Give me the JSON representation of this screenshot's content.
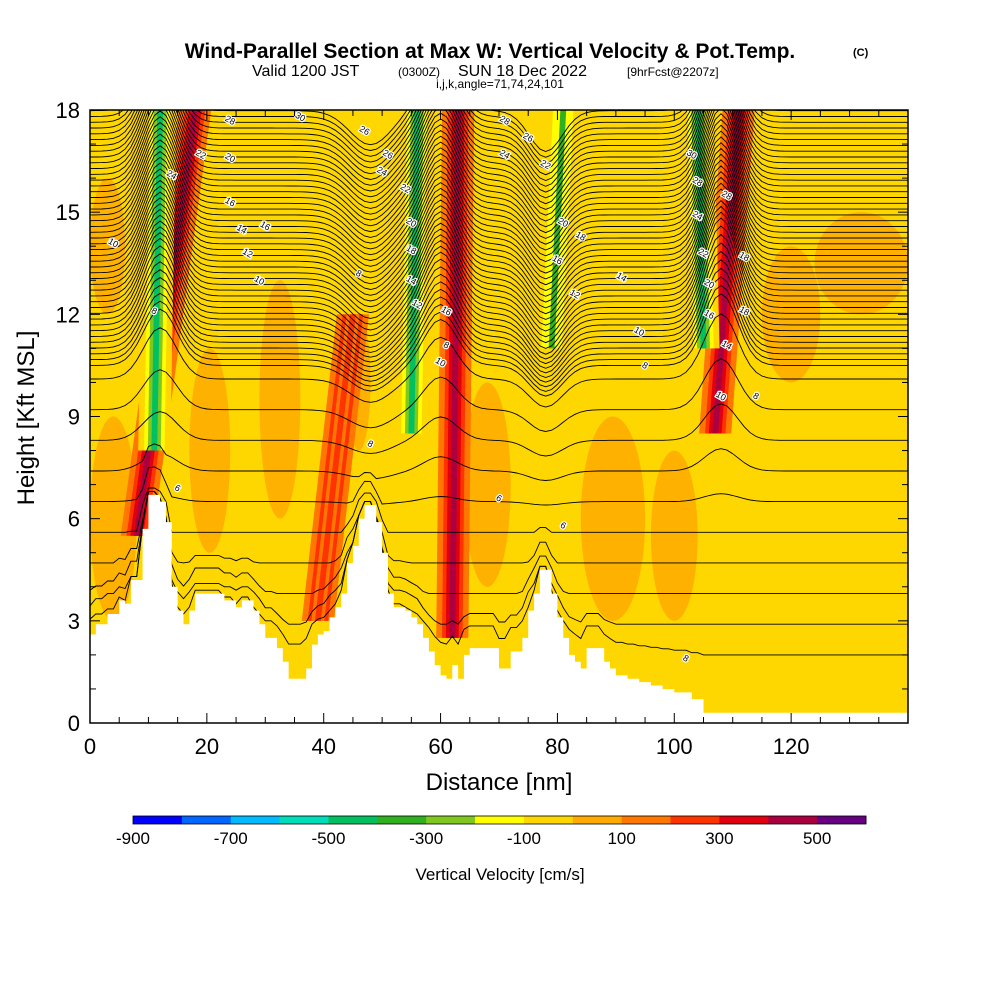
{
  "chart_data": {
    "type": "heatmap",
    "title": "Wind-Parallel Section at Max W: Vertical Velocity & Pot.Temp.",
    "title_mark": "(C)",
    "subtitle": {
      "valid": "Valid 1200 JST",
      "utc": "(0300Z)",
      "date": "SUN 18 Dec 2022",
      "forecast": "[9hrFcst@2207z]"
    },
    "section_info": "i,j,k,angle=71,74,24,101",
    "xlabel": "Distance [nm]",
    "ylabel": "Height [Kft MSL]",
    "xlim": [
      0,
      140
    ],
    "ylim": [
      0,
      18
    ],
    "x_ticks": [
      "0",
      "20",
      "40",
      "60",
      "80",
      "100",
      "120"
    ],
    "y_ticks": [
      "0",
      "3",
      "6",
      "9",
      "12",
      "15",
      "18"
    ],
    "colorbar": {
      "label": "Vertical Velocity [cm/s]",
      "ticks": [
        "-900",
        "-700",
        "-500",
        "-300",
        "-100",
        "100",
        "300",
        "500"
      ],
      "colors": [
        "#0000ff",
        "#0066ff",
        "#00bbff",
        "#00ddbb",
        "#00c060",
        "#30b020",
        "#80c820",
        "#ffff00",
        "#ffd700",
        "#ffaa00",
        "#ff7700",
        "#ff3300",
        "#e00010",
        "#aa0040",
        "#660080"
      ]
    },
    "terrain_profile": [
      [
        0,
        2.6
      ],
      [
        1,
        2.9
      ],
      [
        2,
        2.9
      ],
      [
        3,
        3.2
      ],
      [
        4,
        3.2
      ],
      [
        5,
        3.6
      ],
      [
        6,
        3.5
      ],
      [
        7,
        4.2
      ],
      [
        8,
        4.2
      ],
      [
        9,
        5.7
      ],
      [
        10,
        6.7
      ],
      [
        11,
        6.7
      ],
      [
        12,
        6.5
      ],
      [
        13,
        5.9
      ],
      [
        14,
        4.0
      ],
      [
        15,
        3.3
      ],
      [
        16,
        2.9
      ],
      [
        17,
        3.3
      ],
      [
        18,
        3.8
      ],
      [
        20,
        3.8
      ],
      [
        22,
        3.8
      ],
      [
        23,
        3.6
      ],
      [
        24,
        3.6
      ],
      [
        25,
        3.4
      ],
      [
        26,
        3.6
      ],
      [
        27,
        3.6
      ],
      [
        28,
        3.3
      ],
      [
        29,
        2.9
      ],
      [
        30,
        2.5
      ],
      [
        31,
        2.5
      ],
      [
        32,
        2.2
      ],
      [
        33,
        1.8
      ],
      [
        34,
        1.3
      ],
      [
        35,
        1.3
      ],
      [
        36,
        1.3
      ],
      [
        37,
        1.6
      ],
      [
        38,
        2.3
      ],
      [
        39,
        2.6
      ],
      [
        40,
        2.7
      ],
      [
        41,
        3.1
      ],
      [
        42,
        3.4
      ],
      [
        43,
        3.8
      ],
      [
        44,
        4.7
      ],
      [
        45,
        5.2
      ],
      [
        46,
        6.0
      ],
      [
        47,
        6.4
      ],
      [
        48,
        6.4
      ],
      [
        49,
        5.9
      ],
      [
        50,
        5.0
      ],
      [
        51,
        3.8
      ],
      [
        52,
        3.4
      ],
      [
        53,
        3.4
      ],
      [
        54,
        3.3
      ],
      [
        55,
        3.1
      ],
      [
        56,
        2.9
      ],
      [
        57,
        2.5
      ],
      [
        58,
        2.1
      ],
      [
        59,
        1.7
      ],
      [
        60,
        1.4
      ],
      [
        61,
        1.3
      ],
      [
        62,
        1.7
      ],
      [
        63,
        1.3
      ],
      [
        64,
        2.0
      ],
      [
        65,
        2.2
      ],
      [
        66,
        2.2
      ],
      [
        67,
        2.2
      ],
      [
        68,
        2.2
      ],
      [
        69,
        2.2
      ],
      [
        70,
        1.6
      ],
      [
        71,
        1.6
      ],
      [
        72,
        2.1
      ],
      [
        73,
        2.1
      ],
      [
        74,
        2.5
      ],
      [
        75,
        3.3
      ],
      [
        76,
        3.8
      ],
      [
        77,
        4.5
      ],
      [
        78,
        4.5
      ],
      [
        79,
        3.8
      ],
      [
        80,
        3.1
      ],
      [
        81,
        2.5
      ],
      [
        82,
        2.0
      ],
      [
        83,
        1.8
      ],
      [
        84,
        1.6
      ],
      [
        85,
        2.2
      ],
      [
        86,
        2.2
      ],
      [
        87,
        2.2
      ],
      [
        88,
        1.8
      ],
      [
        89,
        1.6
      ],
      [
        90,
        1.4
      ],
      [
        91,
        1.4
      ],
      [
        92,
        1.3
      ],
      [
        93,
        1.3
      ],
      [
        94,
        1.2
      ],
      [
        95,
        1.2
      ],
      [
        96,
        1.1
      ],
      [
        97,
        1.1
      ],
      [
        98,
        1.0
      ],
      [
        99,
        1.0
      ],
      [
        100,
        0.9
      ],
      [
        101,
        0.9
      ],
      [
        102,
        0.9
      ],
      [
        103,
        0.7
      ],
      [
        104,
        0.7
      ],
      [
        105,
        0.3
      ],
      [
        106,
        0.3
      ],
      [
        107,
        0.3
      ],
      [
        140,
        0.3
      ]
    ],
    "updraft_bands": [
      {
        "base_x": 62,
        "top_x": 63,
        "ymin": 2.5,
        "ymax": 18,
        "value": 300
      },
      {
        "base_x": 107,
        "top_x": 111,
        "ymin": 8.5,
        "ymax": 18,
        "value": 300
      },
      {
        "base_x": 8,
        "top_x": 18,
        "ymin": 5.5,
        "ymax": 18,
        "value": 300
      },
      {
        "base_x": 39,
        "top_x": 45,
        "ymin": 3.0,
        "ymax": 12,
        "value": 100
      }
    ],
    "downdraft_bands": [
      {
        "base_x": 55,
        "top_x": 56,
        "ymin": 8.5,
        "ymax": 18,
        "value": -300
      },
      {
        "base_x": 11,
        "top_x": 12,
        "ymin": 8.0,
        "ymax": 18,
        "value": -300
      },
      {
        "base_x": 105,
        "top_x": 104,
        "ymin": 11,
        "ymax": 18,
        "value": -300
      },
      {
        "base_x": 79,
        "top_x": 81,
        "ymin": 11,
        "ymax": 18,
        "value": -200
      }
    ],
    "theta_contour_labels": [
      {
        "x": 4,
        "y": 14.1,
        "text": "10"
      },
      {
        "x": 11,
        "y": 12.1,
        "text": "8"
      },
      {
        "x": 15,
        "y": 6.9,
        "text": "6"
      },
      {
        "x": 14,
        "y": 16.1,
        "text": "24"
      },
      {
        "x": 19,
        "y": 16.7,
        "text": "22"
      },
      {
        "x": 24,
        "y": 16.6,
        "text": "20"
      },
      {
        "x": 24,
        "y": 15.3,
        "text": "16"
      },
      {
        "x": 26,
        "y": 14.5,
        "text": "14"
      },
      {
        "x": 27,
        "y": 13.8,
        "text": "12"
      },
      {
        "x": 29,
        "y": 13.0,
        "text": "10"
      },
      {
        "x": 30,
        "y": 14.6,
        "text": "16"
      },
      {
        "x": 24,
        "y": 17.7,
        "text": "28"
      },
      {
        "x": 36,
        "y": 17.8,
        "text": "30"
      },
      {
        "x": 47,
        "y": 17.4,
        "text": "26"
      },
      {
        "x": 51,
        "y": 16.7,
        "text": "26"
      },
      {
        "x": 50,
        "y": 16.2,
        "text": "24"
      },
      {
        "x": 54,
        "y": 15.7,
        "text": "22"
      },
      {
        "x": 55,
        "y": 14.7,
        "text": "20"
      },
      {
        "x": 55,
        "y": 13.9,
        "text": "18"
      },
      {
        "x": 55,
        "y": 13.0,
        "text": "14"
      },
      {
        "x": 56,
        "y": 12.3,
        "text": "12"
      },
      {
        "x": 61,
        "y": 12.1,
        "text": "16"
      },
      {
        "x": 61,
        "y": 11.1,
        "text": "8"
      },
      {
        "x": 60,
        "y": 10.6,
        "text": "10"
      },
      {
        "x": 46,
        "y": 13.2,
        "text": "8"
      },
      {
        "x": 48,
        "y": 8.2,
        "text": "8"
      },
      {
        "x": 71,
        "y": 17.7,
        "text": "28"
      },
      {
        "x": 71,
        "y": 16.7,
        "text": "24"
      },
      {
        "x": 75,
        "y": 17.2,
        "text": "26"
      },
      {
        "x": 78,
        "y": 16.4,
        "text": "22"
      },
      {
        "x": 81,
        "y": 14.7,
        "text": "20"
      },
      {
        "x": 80,
        "y": 13.6,
        "text": "16"
      },
      {
        "x": 84,
        "y": 14.3,
        "text": "18"
      },
      {
        "x": 83,
        "y": 12.6,
        "text": "12"
      },
      {
        "x": 91,
        "y": 13.1,
        "text": "14"
      },
      {
        "x": 94,
        "y": 11.5,
        "text": "10"
      },
      {
        "x": 95,
        "y": 10.5,
        "text": "8"
      },
      {
        "x": 70,
        "y": 6.6,
        "text": "6"
      },
      {
        "x": 81,
        "y": 5.8,
        "text": "6"
      },
      {
        "x": 103,
        "y": 16.7,
        "text": "30"
      },
      {
        "x": 104,
        "y": 15.9,
        "text": "28"
      },
      {
        "x": 104,
        "y": 14.9,
        "text": "24"
      },
      {
        "x": 105,
        "y": 13.8,
        "text": "22"
      },
      {
        "x": 106,
        "y": 12.9,
        "text": "20"
      },
      {
        "x": 106,
        "y": 12.0,
        "text": "16"
      },
      {
        "x": 109,
        "y": 15.5,
        "text": "28"
      },
      {
        "x": 112,
        "y": 13.7,
        "text": "18"
      },
      {
        "x": 112,
        "y": 12.1,
        "text": "18"
      },
      {
        "x": 109,
        "y": 11.1,
        "text": "14"
      },
      {
        "x": 108,
        "y": 9.6,
        "text": "10"
      },
      {
        "x": 114,
        "y": 9.6,
        "text": "8"
      },
      {
        "x": 102,
        "y": 1.9,
        "text": "8"
      }
    ]
  }
}
